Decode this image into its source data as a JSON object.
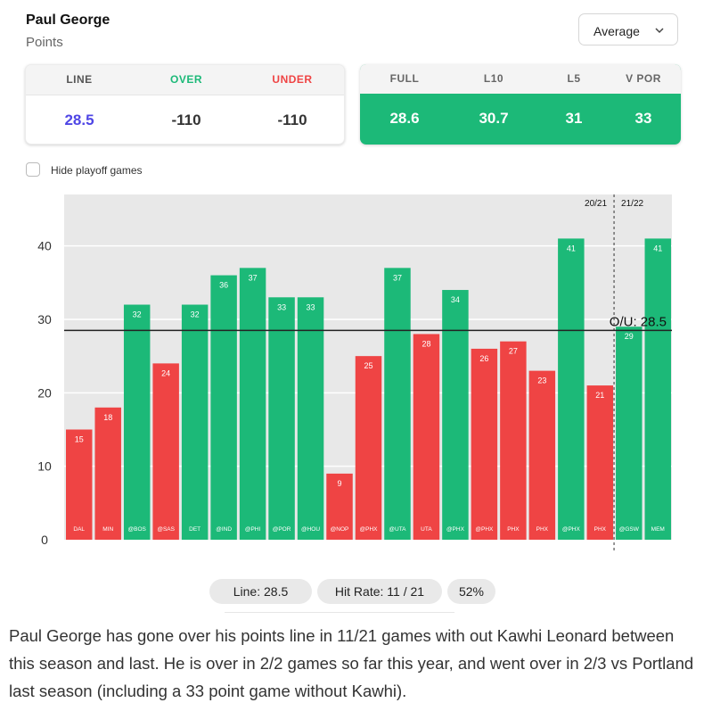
{
  "header": {
    "player_name": "Paul George",
    "stat_name": "Points",
    "dropdown_value": "Average"
  },
  "icons": {
    "dropdown": "chevron-down-icon"
  },
  "line_card": {
    "headers": [
      "LINE",
      "OVER",
      "UNDER"
    ],
    "values": [
      "28.5",
      "-110",
      "-110"
    ],
    "header_colors": [
      "#555555",
      "#1cb978",
      "#ef4444"
    ],
    "value_colors": [
      "#4f46e5",
      "#333333",
      "#333333"
    ]
  },
  "avg_card": {
    "headers": [
      "FULL",
      "L10",
      "L5",
      "V POR"
    ],
    "values": [
      "28.6",
      "30.7",
      "31",
      "33"
    ]
  },
  "filter": {
    "hide_playoff_label": "Hide playoff games",
    "checked": false
  },
  "colors": {
    "over": "#1cb978",
    "under": "#ef4444",
    "plot_bg": "#e8e8e8",
    "line": "#222222"
  },
  "chart_data": {
    "type": "bar",
    "title": "",
    "xlabel": "",
    "ylabel": "",
    "ylim": [
      0,
      47
    ],
    "yticks": [
      0,
      10,
      20,
      30,
      40
    ],
    "line_value": 28.5,
    "line_label": "O/U: 28.5",
    "categories": [
      "DAL",
      "MIN",
      "@BOS",
      "@SAS",
      "DET",
      "@IND",
      "@PHI",
      "@POR",
      "@HOU",
      "@NOP",
      "@PHX",
      "@UTA",
      "UTA",
      "@PHX",
      "@PHX",
      "PHX",
      "PHX",
      "@PHX",
      "PHX",
      "@GSW",
      "MEM"
    ],
    "values": [
      15,
      18,
      32,
      24,
      32,
      36,
      37,
      33,
      33,
      9,
      25,
      37,
      28,
      34,
      26,
      27,
      23,
      41,
      21,
      29,
      41
    ],
    "season_divider": {
      "after_index": 18,
      "left_label": "20/21",
      "right_label": "21/22"
    }
  },
  "stats_bar": {
    "line_text": "Line: 28.5",
    "hit_rate_text": "Hit Rate: 11 / 21",
    "pct_text": "52%"
  },
  "summary": "Paul George has gone over his points line in 11/21 games with out Kawhi Leonard between this season and last. He is over in 2/2 games so far this year, and went over in 2/3 vs Portland last season (including a 33 point game without Kawhi)."
}
